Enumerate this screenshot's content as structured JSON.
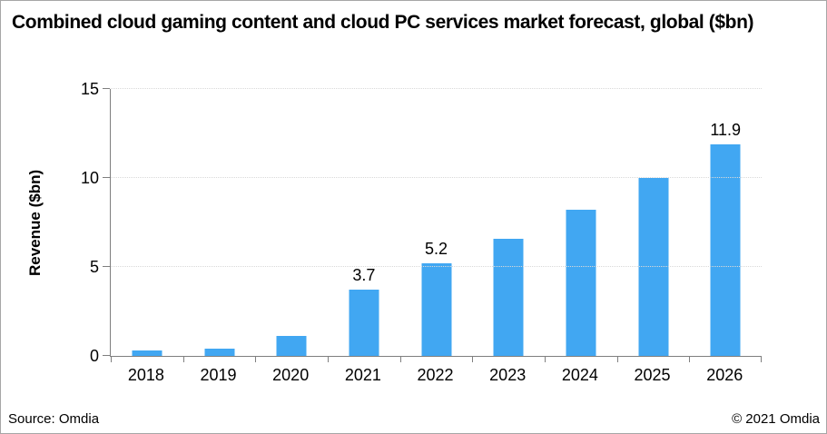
{
  "footer": {
    "source": "Source: Omdia",
    "copyright": "© 2021 Omdia"
  },
  "colors": {
    "bar": "#41a7f2",
    "axis": "#7f7f7f",
    "gridline": "#d9d9d9",
    "text": "#000000",
    "background": "#ffffff",
    "border": "#a6a6a6"
  },
  "chart_data": {
    "type": "bar",
    "title": "Combined cloud gaming content and cloud PC services market forecast, global ($bn)",
    "categories": [
      "2018",
      "2019",
      "2020",
      "2021",
      "2022",
      "2023",
      "2024",
      "2025",
      "2026"
    ],
    "values": [
      0.3,
      0.4,
      1.1,
      3.7,
      5.2,
      6.6,
      8.2,
      10.0,
      11.9
    ],
    "data_labels": [
      null,
      null,
      null,
      "3.7",
      "5.2",
      null,
      null,
      null,
      "11.9"
    ],
    "xlabel": "",
    "ylabel": "Revenue ($bn)",
    "yticks": [
      0,
      5,
      10,
      15
    ],
    "ylim": [
      0,
      15
    ],
    "grid": "horizontal-dotted",
    "legend": "none"
  }
}
